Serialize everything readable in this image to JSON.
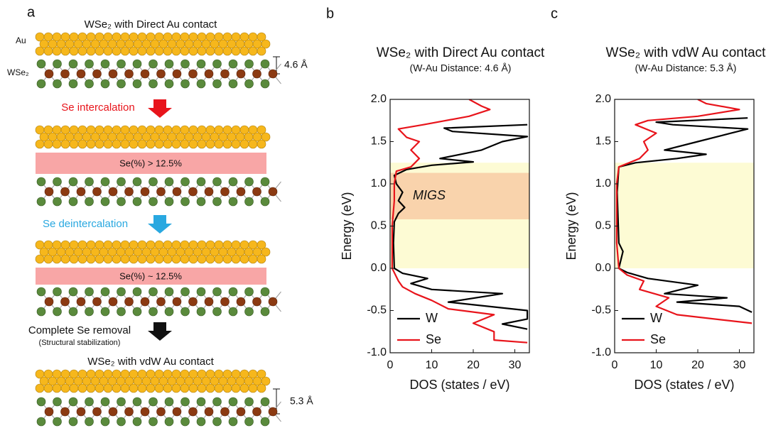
{
  "panel_a": {
    "letter": "a",
    "top_title": "WSe₂ with Direct Au contact",
    "au_label": "Au",
    "wse2_label": "WSe₂",
    "gap_top": "4.6 Å",
    "step1": "Se intercalation",
    "band1": "Se(%)  > 12.5%",
    "step2": "Se deintercalation",
    "band2": "Se(%) ~ 12.5%",
    "step3": "Complete Se removal",
    "step3_note": "(Structural stabilization)",
    "bottom_title": "WSe₂ with vdW Au contact",
    "gap_bottom": "5.3 Å"
  },
  "chart_data": [
    {
      "type": "line",
      "letter": "b",
      "title": "WSe₂ with Direct Au contact",
      "subtitle": "(W-Au Distance: 4.6 Å)",
      "x_label": "DOS (states / eV)",
      "y_label": "Energy (eV)",
      "xlim": [
        0,
        33.5
      ],
      "ylim": [
        -1,
        2
      ],
      "xticks": [
        0,
        10,
        20,
        30
      ],
      "yticks": [
        {
          "value": 2,
          "label": "2.0"
        },
        {
          "value": 1.5,
          "label": "1.5"
        },
        {
          "value": 1,
          "label": "1.0"
        },
        {
          "value": 0.5,
          "label": "0.5"
        },
        {
          "value": 0,
          "label": "0.0"
        },
        {
          "value": -0.5,
          "label": "-0.5"
        },
        {
          "value": -1,
          "label": "-1.0"
        }
      ],
      "legend": "lower left",
      "bands": [
        {
          "ylim": [
            0,
            1.25
          ],
          "color": "#fdfbd4"
        },
        {
          "ylim": [
            0.58,
            1.13
          ],
          "color": "#f9d3ac",
          "label": "MIGS"
        }
      ],
      "series": [
        {
          "name": "W",
          "color": "#000000",
          "x": [
            33,
            27,
            33,
            33,
            14,
            27,
            10,
            5,
            9,
            3,
            1,
            0.8,
            1,
            2,
            3.5,
            2,
            3,
            1.5,
            1,
            4,
            10,
            20,
            12,
            22,
            27,
            33,
            15,
            13,
            33
          ],
          "y": [
            -0.72,
            -0.66,
            -0.6,
            -0.5,
            -0.4,
            -0.3,
            -0.25,
            -0.18,
            -0.12,
            -0.06,
            0,
            0.3,
            0.55,
            0.65,
            0.72,
            0.8,
            0.9,
            1.0,
            1.1,
            1.17,
            1.22,
            1.26,
            1.3,
            1.4,
            1.5,
            1.56,
            1.62,
            1.66,
            1.7
          ]
        },
        {
          "name": "Se",
          "color": "#e8141b",
          "x": [
            33,
            25,
            25,
            20,
            25,
            14,
            10,
            6,
            3,
            2,
            0.5,
            0.5,
            1,
            1,
            1.5,
            5,
            7,
            5,
            7,
            4,
            2,
            8,
            19,
            24,
            22,
            19
          ],
          "y": [
            -0.88,
            -0.85,
            -0.75,
            -0.65,
            -0.55,
            -0.48,
            -0.38,
            -0.3,
            -0.22,
            -0.15,
            0,
            0.5,
            0.8,
            1.0,
            1.15,
            1.2,
            1.3,
            1.4,
            1.5,
            1.55,
            1.65,
            1.7,
            1.8,
            1.88,
            1.92,
            2.0
          ]
        }
      ]
    },
    {
      "type": "line",
      "letter": "c",
      "title": "WSe₂ with vdW Au contact",
      "subtitle": "(W-Au Distance: 5.3 Å)",
      "x_label": "DOS (states / eV)",
      "y_label": "Energy (eV)",
      "xlim": [
        0,
        33.5
      ],
      "ylim": [
        -1,
        2
      ],
      "xticks": [
        0,
        10,
        20,
        30
      ],
      "yticks": [
        {
          "value": 2,
          "label": "2.0"
        },
        {
          "value": 1.5,
          "label": "1.5"
        },
        {
          "value": 1,
          "label": "1.0"
        },
        {
          "value": 0.5,
          "label": "0.5"
        },
        {
          "value": 0,
          "label": "0.0"
        },
        {
          "value": -0.5,
          "label": "-0.5"
        },
        {
          "value": -1,
          "label": "-1.0"
        }
      ],
      "legend": "lower left",
      "bands": [
        {
          "ylim": [
            0,
            1.25
          ],
          "color": "#fdfbd4"
        }
      ],
      "series": [
        {
          "name": "W",
          "color": "#000000",
          "x": [
            33,
            30,
            15,
            27,
            12,
            20,
            8,
            3,
            1,
            1.5,
            2,
            1,
            0.8,
            0.6,
            1,
            5,
            15,
            22,
            12,
            20,
            28,
            32,
            14,
            10,
            32
          ],
          "y": [
            -0.52,
            -0.45,
            -0.4,
            -0.35,
            -0.3,
            -0.2,
            -0.12,
            -0.05,
            0,
            0.1,
            0.2,
            0.3,
            0.6,
            0.9,
            1.2,
            1.25,
            1.3,
            1.35,
            1.4,
            1.5,
            1.6,
            1.65,
            1.7,
            1.73,
            1.78
          ]
        },
        {
          "name": "Se",
          "color": "#e8141b",
          "x": [
            33,
            15,
            10,
            13,
            6,
            7,
            3,
            1,
            0.5,
            0.5,
            1,
            6,
            8,
            7,
            10,
            5,
            8,
            20,
            30,
            22,
            20
          ],
          "y": [
            -0.65,
            -0.55,
            -0.45,
            -0.35,
            -0.25,
            -0.15,
            -0.08,
            0,
            0.3,
            1.0,
            1.2,
            1.3,
            1.4,
            1.5,
            1.6,
            1.7,
            1.75,
            1.8,
            1.88,
            1.95,
            2.0
          ]
        }
      ]
    }
  ]
}
